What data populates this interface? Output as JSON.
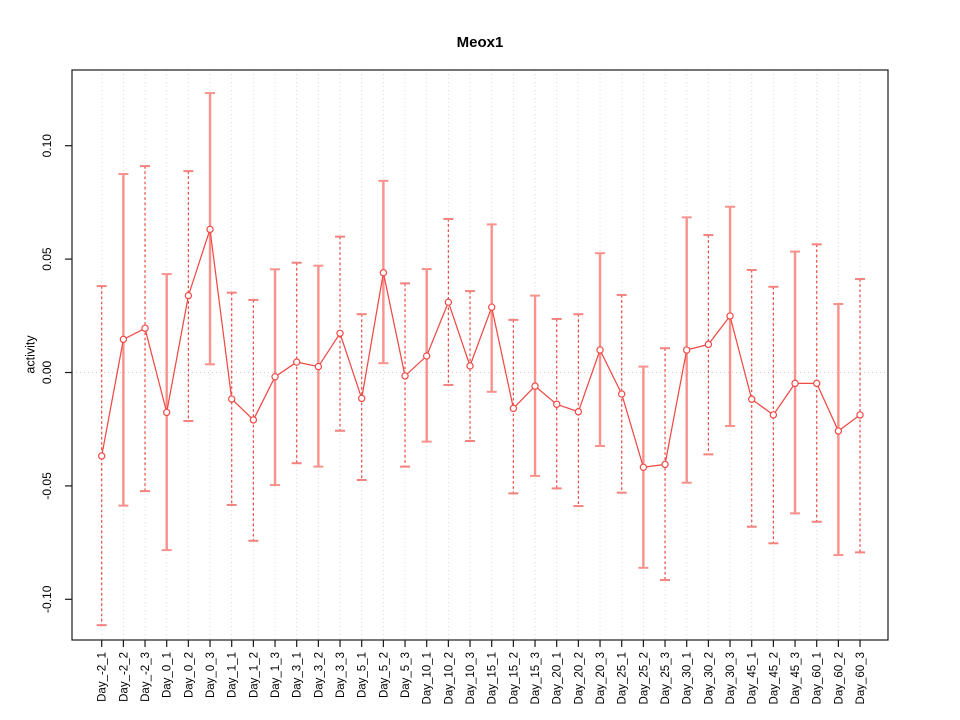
{
  "page": {
    "background": "#ffffff"
  },
  "chart_data": {
    "type": "line",
    "subtype": "points-with-error-bars",
    "title": "Meox1",
    "xlabel": "",
    "ylabel": "activity",
    "legend": "none",
    "grid": "vertical-dotted-gray, dotted zero line",
    "ylim": [
      -0.117,
      0.127
    ],
    "ytick_values": [
      -0.1,
      -0.05,
      0.0,
      0.05,
      0.1
    ],
    "ytick_labels": [
      "-0.10",
      "-0.05",
      "0.00",
      "0.05",
      "0.10"
    ],
    "categories": [
      "Day_-2_1",
      "Day_-2_2",
      "Day_-2_3",
      "Day_0_1",
      "Day_0_2",
      "Day_0_3",
      "Day_1_1",
      "Day_1_2",
      "Day_1_3",
      "Day_3_1",
      "Day_3_2",
      "Day_3_3",
      "Day_5_1",
      "Day_5_2",
      "Day_5_3",
      "Day_10_1",
      "Day_10_2",
      "Day_10_3",
      "Day_15_1",
      "Day_15_2",
      "Day_15_3",
      "Day_20_1",
      "Day_20_2",
      "Day_20_3",
      "Day_25_1",
      "Day_25_2",
      "Day_25_3",
      "Day_30_1",
      "Day_30_2",
      "Day_30_3",
      "Day_45_1",
      "Day_45_2",
      "Day_45_3",
      "Day_60_1",
      "Day_60_2",
      "Day_60_3"
    ],
    "values": [
      -0.0368,
      0.0146,
      0.0195,
      -0.0176,
      0.0339,
      0.0631,
      -0.0117,
      -0.0209,
      -0.0019,
      0.0046,
      0.0026,
      0.0173,
      -0.0114,
      0.044,
      -0.0015,
      0.0073,
      0.031,
      0.0029,
      0.0288,
      -0.0158,
      -0.006,
      -0.014,
      -0.0173,
      0.0099,
      -0.0095,
      -0.0418,
      -0.0405,
      0.0099,
      0.0124,
      0.0249,
      -0.0118,
      -0.0187,
      -0.0048,
      -0.0048,
      -0.0258,
      -0.0187
    ],
    "upper": [
      0.0381,
      0.0875,
      0.091,
      0.0434,
      0.0888,
      0.1232,
      0.0352,
      0.032,
      0.0455,
      0.0484,
      0.0471,
      0.0599,
      0.0257,
      0.0845,
      0.0393,
      0.0456,
      0.0677,
      0.0359,
      0.0653,
      0.0232,
      0.0339,
      0.0236,
      0.0257,
      0.0526,
      0.0342,
      0.0026,
      0.0107,
      0.0684,
      0.0606,
      0.0731,
      0.0452,
      0.0378,
      0.0533,
      0.0565,
      0.0302,
      0.0412
    ],
    "lower": [
      -0.1114,
      -0.0587,
      -0.0523,
      -0.0783,
      -0.0214,
      0.0036,
      -0.0584,
      -0.0742,
      -0.0496,
      -0.04,
      -0.0415,
      -0.0257,
      -0.0474,
      0.0041,
      -0.0415,
      -0.0305,
      -0.0055,
      -0.0302,
      -0.0085,
      -0.0533,
      -0.0456,
      -0.0511,
      -0.0589,
      -0.0324,
      -0.053,
      -0.0861,
      -0.0915,
      -0.0486,
      -0.0361,
      -0.0236,
      -0.068,
      -0.0753,
      -0.0621,
      -0.0658,
      -0.0805,
      -0.0793
    ],
    "bar_styles": [
      "dashed",
      "solid",
      "dashed",
      "solid",
      "dashed",
      "solid",
      "dashed",
      "dashed",
      "solid",
      "dashed",
      "solid",
      "dashed",
      "dashed",
      "solid",
      "dashed",
      "solid",
      "dashed",
      "dashed",
      "solid",
      "dashed",
      "solid",
      "dashed",
      "dashed",
      "solid",
      "dashed",
      "solid",
      "dashed",
      "solid",
      "dashed",
      "solid",
      "dashed",
      "dashed",
      "solid",
      "dashed",
      "solid",
      "dashed"
    ],
    "colors": {
      "series_line": "#ef4a46",
      "marker_stroke": "#ef4a46",
      "marker_fill": "#ffffff",
      "solid_bar": "#f9918c",
      "dashed_bar": "#ee4742",
      "cap": "#f4827e",
      "gridline": "#d9d9d9",
      "zero_line": "#cccccc",
      "axis": "#1a1a1a",
      "text": "#000000"
    }
  }
}
